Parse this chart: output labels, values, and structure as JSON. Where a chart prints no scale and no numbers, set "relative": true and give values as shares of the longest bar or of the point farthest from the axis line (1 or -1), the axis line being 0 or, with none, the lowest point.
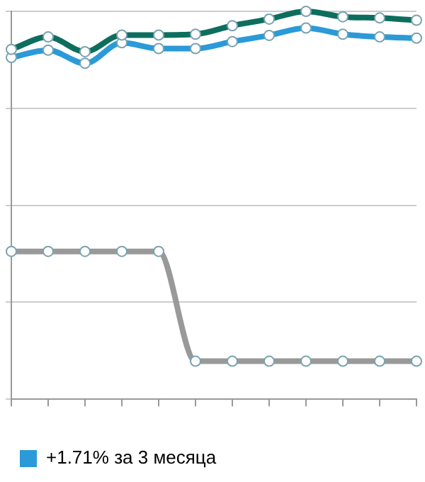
{
  "chart_data": {
    "type": "line",
    "relative": true,
    "categories": [
      null,
      null,
      null,
      null,
      null,
      null,
      null,
      null,
      null,
      null,
      null,
      null
    ],
    "series": [
      {
        "color": "#0e6e5e",
        "values": [
          0.902,
          0.934,
          0.896,
          0.939,
          0.939,
          0.941,
          0.963,
          0.98,
          1,
          0.986,
          0.983,
          0.977
        ]
      },
      {
        "name": "+1.71% за 3 месяца",
        "color": "#2a9ad8",
        "values": [
          0.881,
          0.9,
          0.866,
          0.919,
          0.904,
          0.904,
          0.922,
          0.938,
          0.957,
          0.941,
          0.934,
          0.931
        ]
      },
      {
        "color": "#999999",
        "values": [
          0.381,
          0.381,
          0.381,
          0.381,
          0.381,
          0.098,
          0.098,
          0.098,
          0.098,
          0.098,
          0.098,
          0.098
        ]
      }
    ],
    "legend": "bottom",
    "grid": "y",
    "marker": "circle",
    "line_style": "solid"
  }
}
